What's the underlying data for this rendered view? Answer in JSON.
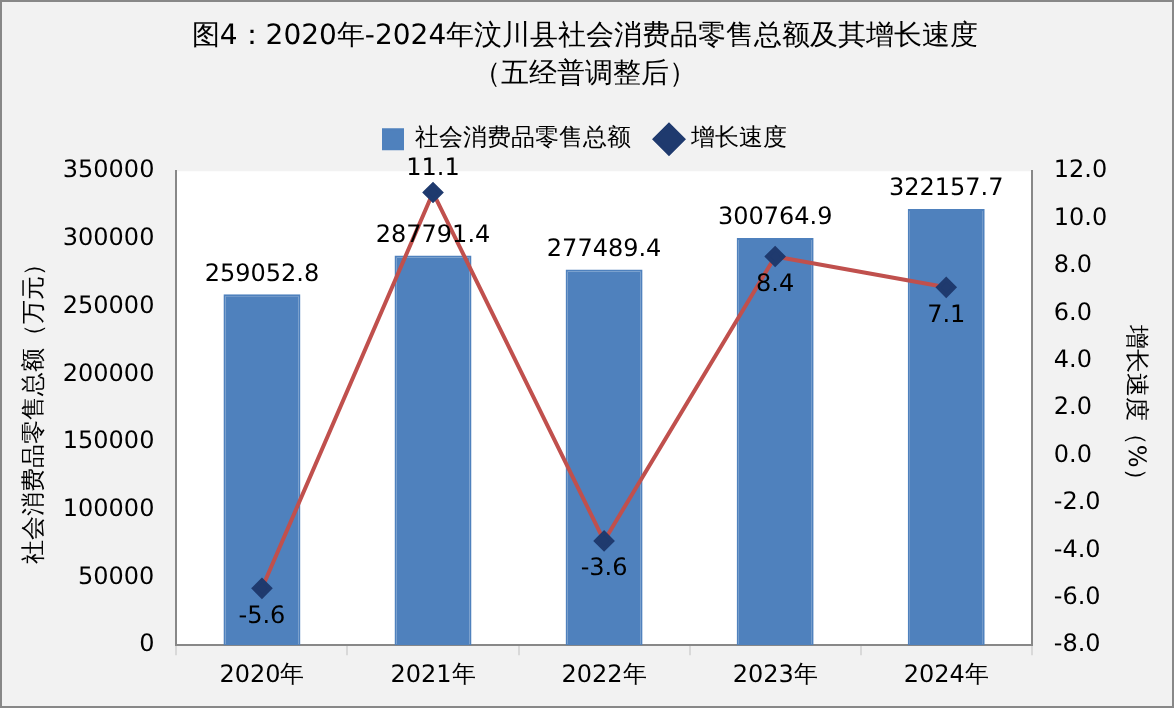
{
  "chart_data": {
    "type": "bar",
    "title": "图4：2020年-2024年汶川县社会消费品零售总额及其增长速度",
    "subtitle": "（五经普调整后）",
    "ylabel": "社会消费品零售总额（万元）",
    "y2label": "增长速度（%）",
    "categories": [
      "2020年",
      "2021年",
      "2022年",
      "2023年",
      "2024年"
    ],
    "series": [
      {
        "name": "社会消费品零售总额",
        "color": "#4f81bd",
        "values": [
          259052.8,
          287791.4,
          277489.4,
          300764.9,
          322157.7
        ]
      },
      {
        "name": "增长速度",
        "type": "line",
        "axis": "y2",
        "color": "#c0504d",
        "values": [
          -5.6,
          11.1,
          -3.6,
          8.4,
          7.1
        ]
      }
    ],
    "ylim": [
      0,
      350000
    ],
    "yticks": [
      0,
      50000,
      100000,
      150000,
      200000,
      250000,
      300000,
      350000
    ],
    "y2lim": [
      -8,
      12
    ],
    "y2ticks": [
      {
        "value": -8,
        "label": "-8.0"
      },
      {
        "value": -6,
        "label": "-6.0"
      },
      {
        "value": -4,
        "label": "-4.0"
      },
      {
        "value": -2,
        "label": "-2.0"
      },
      {
        "value": 0,
        "label": "0.0"
      },
      {
        "value": 2,
        "label": "2.0"
      },
      {
        "value": 4,
        "label": "4.0"
      },
      {
        "value": 6,
        "label": "6.0"
      },
      {
        "value": 8,
        "label": "8.0"
      },
      {
        "value": 10,
        "label": "10.0"
      },
      {
        "value": 12,
        "label": "12.0"
      }
    ],
    "marker": "diamond",
    "data_labels": true,
    "legend": "top",
    "grid": false
  }
}
